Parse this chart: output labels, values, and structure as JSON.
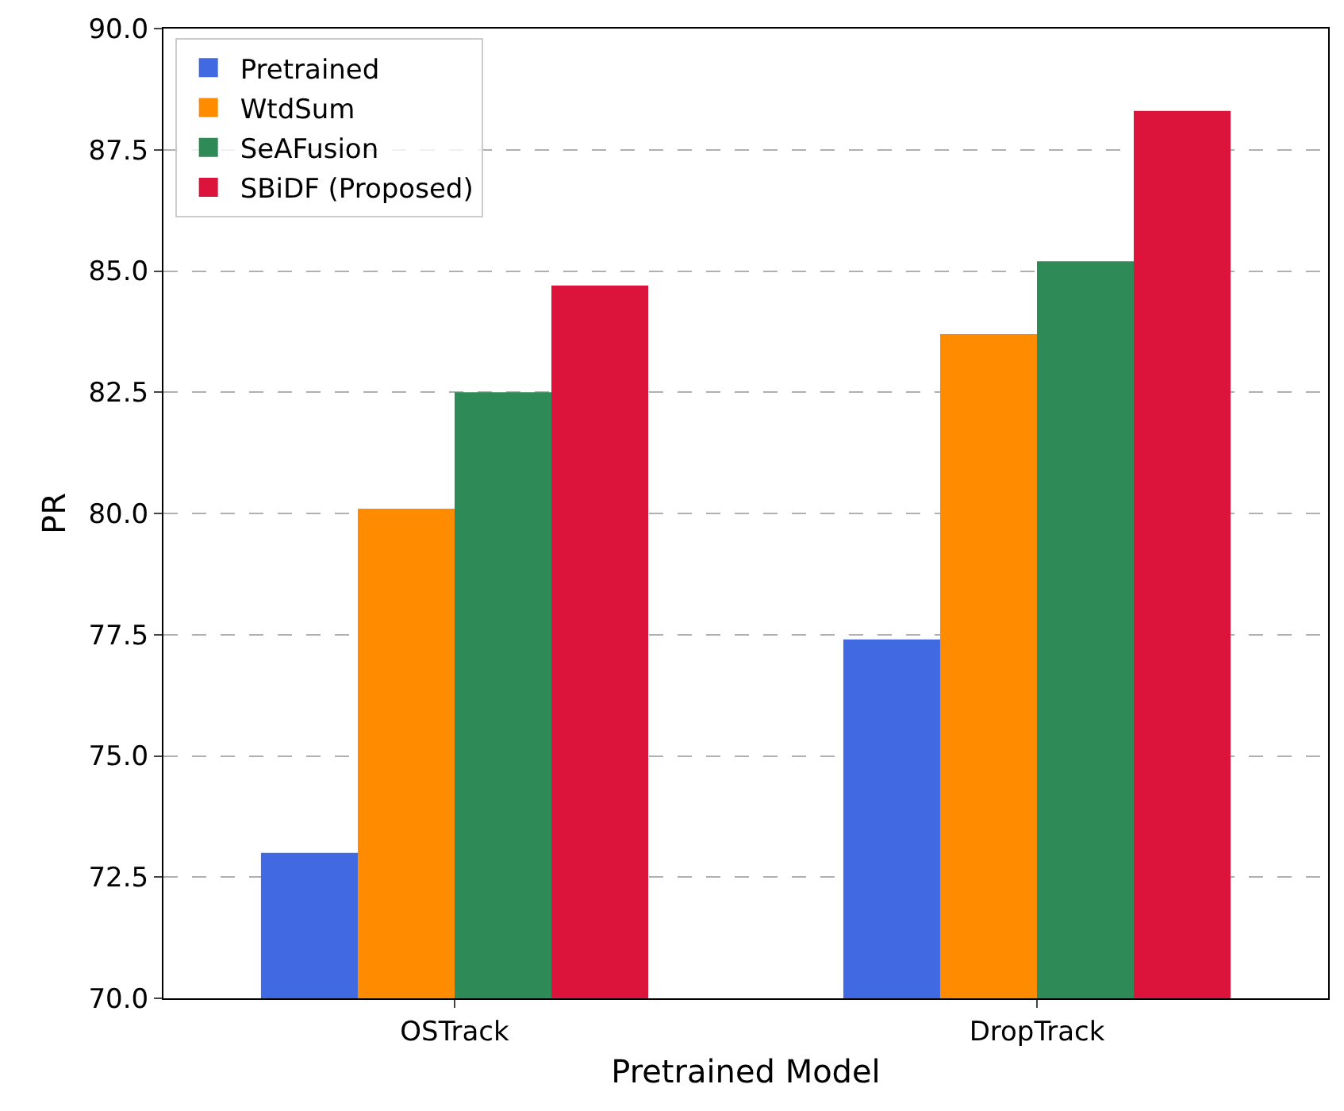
{
  "chart_data": {
    "type": "bar",
    "xlabel": "Pretrained Model",
    "ylabel": "PR",
    "categories": [
      "OSTrack",
      "DropTrack"
    ],
    "series": [
      {
        "name": "Pretrained",
        "color": "#4169e1",
        "values": [
          73.0,
          77.4
        ]
      },
      {
        "name": "WtdSum",
        "color": "#ff8c00",
        "values": [
          80.1,
          83.7
        ]
      },
      {
        "name": "SeAFusion",
        "color": "#2e8b57",
        "values": [
          82.5,
          85.2
        ]
      },
      {
        "name": "SBiDF (Proposed)",
        "color": "#dc143c",
        "values": [
          84.7,
          88.3
        ]
      }
    ],
    "ylim": [
      70,
      90
    ],
    "yticks": [
      {
        "value": 70,
        "label": "70.0"
      },
      {
        "value": 72.5,
        "label": "72.5"
      },
      {
        "value": 75,
        "label": "75.0"
      },
      {
        "value": 77.5,
        "label": "77.5"
      },
      {
        "value": 80,
        "label": "80.0"
      },
      {
        "value": 82.5,
        "label": "82.5"
      },
      {
        "value": 85,
        "label": "85.0"
      },
      {
        "value": 87.5,
        "label": "87.5"
      },
      {
        "value": 90,
        "label": "90.0"
      }
    ],
    "grid": "y",
    "legend": "top left"
  }
}
